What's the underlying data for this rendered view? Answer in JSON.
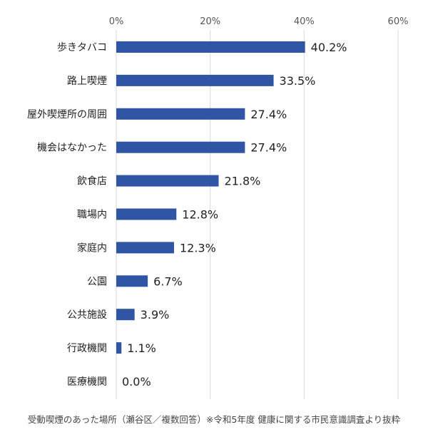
{
  "chart_data": {
    "type": "bar",
    "orientation": "horizontal",
    "categories": [
      "歩きタバコ",
      "路上喫煙",
      "屋外喫煙所の周囲",
      "機会はなかった",
      "飲食店",
      "職場内",
      "家庭内",
      "公園",
      "公共施設",
      "行政機関",
      "医療機関"
    ],
    "values": [
      40.2,
      33.5,
      27.4,
      27.4,
      21.8,
      12.8,
      12.3,
      6.7,
      3.9,
      1.1,
      0.0
    ],
    "data_labels": [
      "40.2%",
      "33.5%",
      "27.4%",
      "27.4%",
      "21.8%",
      "12.8%",
      "12.3%",
      "6.7%",
      "3.9%",
      "1.1%",
      "0.0%"
    ],
    "xlim": [
      0,
      60
    ],
    "xticks": [
      0,
      20,
      40,
      60
    ],
    "xtick_labels": [
      "0%",
      "20%",
      "40%",
      "60%"
    ],
    "x_axis_position": "top",
    "grid": true,
    "bar_color": "#2f55a4",
    "title": "",
    "xlabel": "",
    "ylabel": ""
  },
  "caption": "受動喫煙のあった場所（瀬谷区／複数回答）※令和5年度 健康に関する市民意識調査より抜粋"
}
